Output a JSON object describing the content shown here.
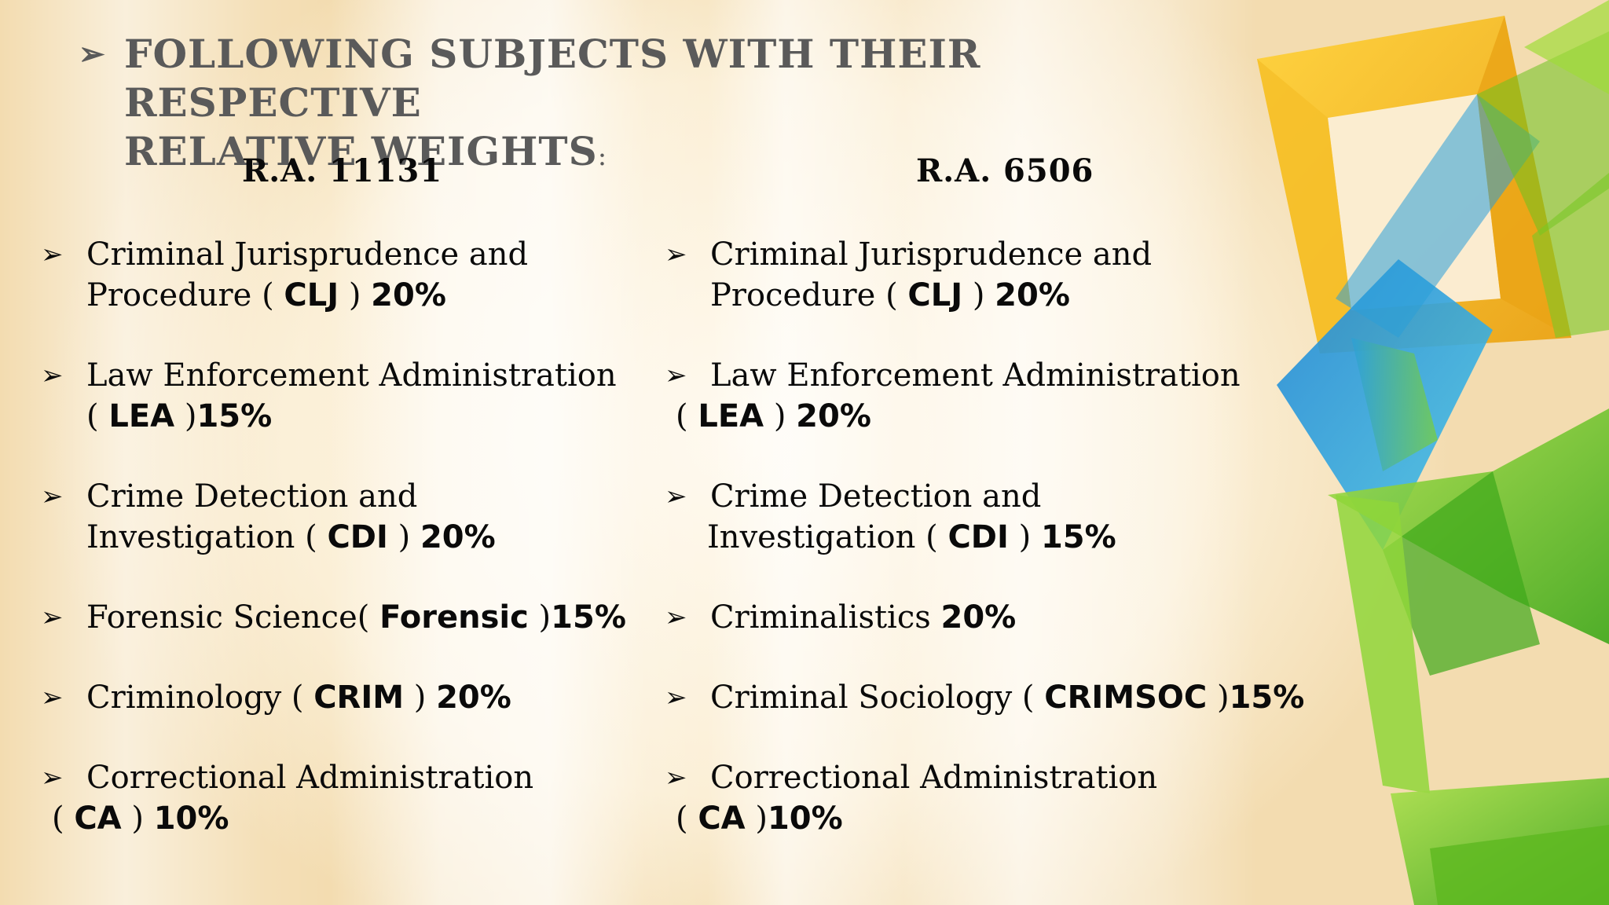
{
  "title": {
    "bullet": "➢",
    "line1": "FOLLOWING SUBJECTS WITH THEIR RESPECTIVE",
    "line2_main": "RELATIVE WEIGHTS",
    "line2_tail": ":"
  },
  "columns": {
    "left": {
      "heading": "R.A. 11131",
      "items": [
        {
          "bullet": "➢",
          "l1_a": "Criminal Jurisprudence and",
          "l2_a": "Procedure ( ",
          "l2_b": "CLJ",
          "l2_c": " ) ",
          "l2_d": "20%"
        },
        {
          "bullet": "➢",
          "l1_a": "Law Enforcement Administration",
          "l2_a": "( ",
          "l2_b": "LEA",
          "l2_c": " )",
          "l2_d": "15%"
        },
        {
          "bullet": "➢",
          "l1_a": "Crime Detection and",
          "l2_a": "Investigation ( ",
          "l2_b": "CDI",
          "l2_c": " ) ",
          "l2_d": "20%"
        },
        {
          "bullet": "➢",
          "l1_a": "Forensic Science( ",
          "l1_b": "Forensic",
          "l1_c": " )",
          "l1_d": "15%"
        },
        {
          "bullet": "➢",
          "l1_a": "Criminology ( ",
          "l1_b": "CRIM",
          "l1_c": " ) ",
          "l1_d": "20%"
        },
        {
          "bullet": "➢",
          "l1_a": "Correctional Administration",
          "l2_a": "( ",
          "l2_b": "CA",
          "l2_c": " ) ",
          "l2_d": "10%"
        }
      ]
    },
    "right": {
      "heading": "R.A. 6506",
      "items": [
        {
          "bullet": "➢",
          "l1_a": "Criminal Jurisprudence and",
          "l2_a": "Procedure ( ",
          "l2_b": "CLJ",
          "l2_c": " ) ",
          "l2_d": "20%"
        },
        {
          "bullet": "➢",
          "l1_a": "Law Enforcement Administration",
          "l2_a": "( ",
          "l2_b": "LEA",
          "l2_c": " ) ",
          "l2_d": "20%"
        },
        {
          "bullet": "➢",
          "l1_a": "Crime Detection and",
          "l2_a": "Investigation ( ",
          "l2_b": "CDI",
          "l2_c": " ) ",
          "l2_d": "15%"
        },
        {
          "bullet": "➢",
          "l1_a": "Criminalistics ",
          "l1_d": "20%"
        },
        {
          "bullet": "➢",
          "l1_a": "Criminal Sociology ( ",
          "l1_b": "CRIMSOC",
          "l1_c": " )",
          "l1_d": "15%"
        },
        {
          "bullet": "➢",
          "l1_a": "Correctional Administration",
          "l2_a": "( ",
          "l2_b": "CA",
          "l2_c": " )",
          "l2_d": "10%"
        }
      ]
    }
  },
  "colors": {
    "background": "#fbefd9",
    "title": "#5a5a5a",
    "text": "#0a0a0a",
    "accent_yellow": "#f2b51e",
    "accent_blue": "#2a9fd8",
    "accent_green": "#6cc21f"
  }
}
